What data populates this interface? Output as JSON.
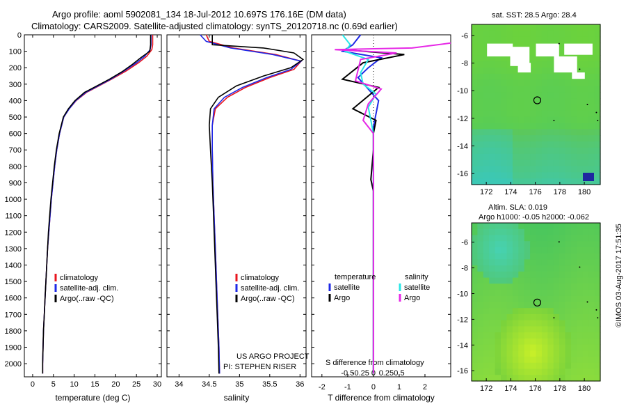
{
  "header": {
    "line1": "Argo profile: aoml 5902081_134 18-Jul-2012 10.697S 176.16E (DM data)",
    "line2": "Climatology: CARS2009. Satellite-adjusted climatology: synTS_20120718.nc (0.69d earlier)"
  },
  "side_label": "©IMOS 03-Aug-2017 17:51:35",
  "colors": {
    "clim": "#e8141e",
    "sat": "#1e28e6",
    "argo": "#000000",
    "sal_sat": "#28e6e6",
    "sal_argo": "#e628e6"
  },
  "chart_data": [
    {
      "type": "line",
      "id": "temperature",
      "xlabel": "temperature (deg C)",
      "ylabel": "",
      "xlim": [
        -2,
        31
      ],
      "ylim": [
        2080,
        0
      ],
      "xticks": [
        0,
        5,
        10,
        15,
        20,
        25,
        30
      ],
      "yticks": [
        0,
        100,
        200,
        300,
        400,
        500,
        600,
        700,
        800,
        900,
        1000,
        1100,
        1200,
        1300,
        1400,
        1500,
        1600,
        1700,
        1800,
        1900,
        2000
      ],
      "legend": [
        "climatology",
        "satellite-adj. clim.",
        "Argo(..raw -QC)"
      ],
      "series": [
        {
          "name": "climatology",
          "color_key": "clim",
          "points": [
            [
              28.9,
              0
            ],
            [
              28.9,
              60
            ],
            [
              28.7,
              90
            ],
            [
              27.5,
              130
            ],
            [
              25.5,
              170
            ],
            [
              22.5,
              220
            ],
            [
              19,
              270
            ],
            [
              16,
              310
            ],
            [
              13,
              350
            ],
            [
              10.5,
              400
            ],
            [
              8.8,
              450
            ],
            [
              7.5,
              500
            ],
            [
              6.5,
              600
            ],
            [
              5.8,
              700
            ],
            [
              5.3,
              800
            ],
            [
              4.9,
              900
            ],
            [
              4.5,
              1000
            ],
            [
              4.2,
              1100
            ],
            [
              3.9,
              1200
            ],
            [
              3.6,
              1300
            ],
            [
              3.4,
              1400
            ],
            [
              3.2,
              1500
            ],
            [
              3,
              1600
            ],
            [
              2.8,
              1700
            ],
            [
              2.6,
              1800
            ],
            [
              2.5,
              1900
            ],
            [
              2.4,
              2000
            ],
            [
              2.4,
              2060
            ]
          ]
        },
        {
          "name": "satellite-adj. clim.",
          "color_key": "sat",
          "points": [
            [
              28.5,
              0
            ],
            [
              28.5,
              60
            ],
            [
              28.3,
              90
            ],
            [
              27,
              130
            ],
            [
              25,
              170
            ],
            [
              22,
              220
            ],
            [
              18.8,
              270
            ],
            [
              15.8,
              310
            ],
            [
              12.8,
              350
            ],
            [
              10.4,
              400
            ],
            [
              8.8,
              450
            ],
            [
              7.5,
              500
            ],
            [
              6.5,
              600
            ],
            [
              5.8,
              700
            ],
            [
              5.3,
              800
            ],
            [
              4.9,
              900
            ],
            [
              4.5,
              1000
            ],
            [
              4.2,
              1100
            ],
            [
              3.9,
              1200
            ],
            [
              3.6,
              1300
            ],
            [
              3.4,
              1400
            ],
            [
              3.2,
              1500
            ],
            [
              3,
              1600
            ],
            [
              2.8,
              1700
            ],
            [
              2.6,
              1800
            ],
            [
              2.5,
              1900
            ],
            [
              2.4,
              2000
            ],
            [
              2.4,
              2060
            ]
          ]
        },
        {
          "name": "Argo(..raw -QC)",
          "color_key": "argo",
          "points": [
            [
              28.4,
              0
            ],
            [
              28.4,
              60
            ],
            [
              28.2,
              100
            ],
            [
              26,
              140
            ],
            [
              24,
              180
            ],
            [
              21.5,
              225
            ],
            [
              18.5,
              270
            ],
            [
              15.5,
              310
            ],
            [
              12.5,
              350
            ],
            [
              10.2,
              400
            ],
            [
              8.6,
              450
            ],
            [
              7.4,
              500
            ],
            [
              6.4,
              600
            ],
            [
              5.7,
              700
            ],
            [
              5.2,
              800
            ],
            [
              4.8,
              900
            ],
            [
              4.4,
              1000
            ],
            [
              4.1,
              1100
            ],
            [
              3.8,
              1200
            ],
            [
              3.6,
              1300
            ],
            [
              3.4,
              1400
            ],
            [
              3.2,
              1500
            ],
            [
              3,
              1600
            ],
            [
              2.8,
              1700
            ],
            [
              2.6,
              1800
            ],
            [
              2.5,
              1900
            ],
            [
              2.4,
              2000
            ],
            [
              2.4,
              2060
            ]
          ]
        }
      ]
    },
    {
      "type": "line",
      "id": "salinity",
      "xlabel": "salinity",
      "xlim": [
        33.8,
        36.1
      ],
      "ylim": [
        2080,
        0
      ],
      "xticks": [
        34,
        34.5,
        35,
        35.5,
        36
      ],
      "xticklabels": [
        "34",
        "34.5",
        "35",
        "35.5",
        "36"
      ],
      "legend": [
        "climatology",
        "satellite-adj. clim.",
        "Argo(..raw -QC)"
      ],
      "annotation": [
        "US ARGO PROJECT",
        "PI: STEPHEN RISER"
      ],
      "series": [
        {
          "name": "climatology",
          "color_key": "clim",
          "points": [
            [
              34.45,
              0
            ],
            [
              34.5,
              40
            ],
            [
              34.9,
              80
            ],
            [
              35.6,
              120
            ],
            [
              36.02,
              160
            ],
            [
              35.9,
              210
            ],
            [
              35.5,
              260
            ],
            [
              35.1,
              320
            ],
            [
              34.8,
              380
            ],
            [
              34.6,
              450
            ],
            [
              34.55,
              550
            ],
            [
              34.55,
              700
            ],
            [
              34.56,
              900
            ],
            [
              34.58,
              1100
            ],
            [
              34.6,
              1300
            ],
            [
              34.62,
              1500
            ],
            [
              34.64,
              1700
            ],
            [
              34.66,
              1900
            ],
            [
              34.67,
              2060
            ]
          ]
        },
        {
          "name": "satellite-adj. clim.",
          "color_key": "sat",
          "points": [
            [
              34.35,
              0
            ],
            [
              34.45,
              40
            ],
            [
              34.85,
              80
            ],
            [
              35.55,
              120
            ],
            [
              36.02,
              160
            ],
            [
              35.85,
              210
            ],
            [
              35.45,
              260
            ],
            [
              35.05,
              320
            ],
            [
              34.75,
              380
            ],
            [
              34.58,
              450
            ],
            [
              34.55,
              550
            ],
            [
              34.55,
              700
            ],
            [
              34.56,
              900
            ],
            [
              34.58,
              1100
            ],
            [
              34.6,
              1300
            ],
            [
              34.62,
              1500
            ],
            [
              34.64,
              1700
            ],
            [
              34.66,
              1900
            ],
            [
              34.67,
              2060
            ]
          ]
        },
        {
          "name": "Argo(..raw -QC)",
          "color_key": "argo",
          "points": [
            [
              34.55,
              0
            ],
            [
              34.55,
              60
            ],
            [
              35.4,
              80
            ],
            [
              35.9,
              110
            ],
            [
              36.05,
              150
            ],
            [
              35.85,
              200
            ],
            [
              35.4,
              250
            ],
            [
              34.95,
              310
            ],
            [
              34.65,
              380
            ],
            [
              34.52,
              450
            ],
            [
              34.5,
              550
            ],
            [
              34.52,
              700
            ],
            [
              34.55,
              900
            ],
            [
              34.57,
              1100
            ],
            [
              34.59,
              1300
            ],
            [
              34.61,
              1500
            ],
            [
              34.63,
              1700
            ],
            [
              34.65,
              1900
            ],
            [
              34.66,
              2060
            ]
          ]
        }
      ]
    },
    {
      "type": "line",
      "id": "difference",
      "xlabel": "T difference from climatology",
      "top_label": "S difference from climatology",
      "xlim": [
        -2.4,
        3.0
      ],
      "ylim": [
        2080,
        0
      ],
      "xticks": [
        -2,
        -1,
        0,
        1,
        2
      ],
      "top_xticks": [
        -0.5,
        -0.25,
        0,
        0.25,
        0.5
      ],
      "top_xticklabels": [
        "-0.5",
        "-0.25",
        "0",
        "0.25",
        "0.5"
      ],
      "legend": {
        "temperature_title": "temperature",
        "salinity_title": "salinity",
        "temperature_items": [
          "satellite",
          "Argo"
        ],
        "salinity_items": [
          "satellite",
          "Argo"
        ]
      },
      "series": [
        {
          "name": "T satellite",
          "color_key": "sat",
          "points": [
            [
              -0.5,
              0
            ],
            [
              -0.8,
              60
            ],
            [
              -1.2,
              100
            ],
            [
              0.3,
              140
            ],
            [
              -0.2,
              200
            ],
            [
              -0.6,
              260
            ],
            [
              -0.2,
              330
            ],
            [
              0.2,
              400
            ],
            [
              0.1,
              480
            ],
            [
              0,
              560
            ],
            [
              0,
              700
            ],
            [
              0,
              900
            ],
            [
              0,
              1100
            ],
            [
              0,
              1500
            ],
            [
              0,
              2060
            ]
          ]
        },
        {
          "name": "T Argo",
          "color_key": "argo",
          "points": [
            [
              -1.2,
              90
            ],
            [
              1.2,
              120
            ],
            [
              -0.4,
              170
            ],
            [
              -1.2,
              270
            ],
            [
              0.2,
              320
            ],
            [
              -0.8,
              450
            ],
            [
              0.1,
              520
            ],
            [
              0,
              600
            ],
            [
              0,
              700
            ],
            [
              -0.1,
              880
            ],
            [
              0,
              950
            ],
            [
              0,
              1100
            ],
            [
              0,
              1500
            ],
            [
              0,
              2060
            ]
          ]
        },
        {
          "name": "S satellite",
          "color_key": "sal_sat",
          "points": [
            [
              -1.2,
              0
            ],
            [
              -0.9,
              60
            ],
            [
              -1.1,
              100
            ],
            [
              -0.2,
              150
            ],
            [
              -0.5,
              230
            ],
            [
              -0.4,
              300
            ],
            [
              0.1,
              360
            ],
            [
              -0.2,
              440
            ],
            [
              -0.1,
              520
            ],
            [
              0,
              600
            ],
            [
              0,
              800
            ],
            [
              0,
              1200
            ],
            [
              0,
              2060
            ]
          ]
        },
        {
          "name": "S Argo",
          "color_key": "sal_argo",
          "points": [
            [
              3.0,
              50
            ],
            [
              1.5,
              80
            ],
            [
              -1.5,
              90
            ],
            [
              0.9,
              110
            ],
            [
              -0.5,
              150
            ],
            [
              -0.7,
              280
            ],
            [
              0.3,
              330
            ],
            [
              -0.2,
              420
            ],
            [
              -0.4,
              520
            ],
            [
              0,
              600
            ],
            [
              0,
              800
            ],
            [
              0,
              1200
            ],
            [
              0,
              2060
            ]
          ]
        }
      ]
    },
    {
      "type": "heatmap",
      "id": "sst_map",
      "title": "sat. SST: 28.5  Argo: 28.4",
      "xlim": [
        170.8,
        181.3
      ],
      "ylim": [
        -16.8,
        -5.2
      ],
      "xticks": [
        172,
        174,
        176,
        178,
        180
      ],
      "yticks": [
        -6,
        -8,
        -10,
        -12,
        -14,
        -16
      ],
      "marker": {
        "lon": 176.16,
        "lat": -10.697
      }
    },
    {
      "type": "heatmap",
      "id": "sla_map",
      "title": "Altim. SLA: 0.019",
      "subtitle": "Argo h1000: -0.05 h2000: -0.062",
      "xlim": [
        170.8,
        181.3
      ],
      "ylim": [
        -16.8,
        -4.5
      ],
      "xticks": [
        172,
        174,
        176,
        178,
        180
      ],
      "yticks": [
        -6,
        -8,
        -10,
        -12,
        -14,
        -16
      ],
      "marker": {
        "lon": 176.16,
        "lat": -10.697
      }
    }
  ]
}
